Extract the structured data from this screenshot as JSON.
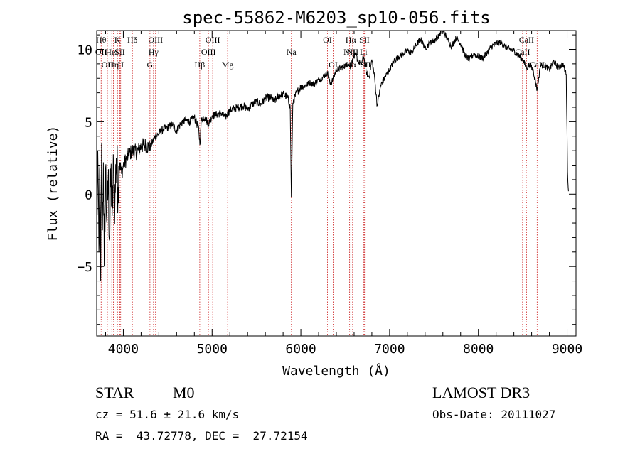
{
  "chart_data": {
    "type": "line",
    "title": "spec-55862-M6203_sp10-056.fits",
    "xlabel": "Wavelength (Å)",
    "ylabel": "Flux (relative)",
    "xlim": [
      3700,
      9100
    ],
    "ylim": [
      -9.8,
      11.3
    ],
    "x_ticks": [
      4000,
      5000,
      6000,
      7000,
      8000,
      9000
    ],
    "x_tick_labels": [
      "4000",
      "5000",
      "6000",
      "7000",
      "8000",
      "9000"
    ],
    "y_ticks": [
      -5,
      0,
      5,
      10
    ],
    "y_tick_labels": [
      "−5",
      "0",
      "5",
      "10"
    ],
    "series": [
      {
        "name": "flux",
        "x": [
          3700,
          3715,
          3725,
          3735,
          3745,
          3755,
          3765,
          3775,
          3785,
          3800,
          3815,
          3830,
          3845,
          3860,
          3875,
          3890,
          3905,
          3920,
          3940,
          3960,
          3980,
          4000,
          4030,
          4060,
          4100,
          4150,
          4200,
          4250,
          4300,
          4350,
          4400,
          4450,
          4500,
          4550,
          4600,
          4650,
          4700,
          4750,
          4800,
          4850,
          4862,
          4880,
          4920,
          4960,
          5000,
          5050,
          5100,
          5150,
          5200,
          5250,
          5300,
          5350,
          5400,
          5450,
          5500,
          5550,
          5600,
          5650,
          5700,
          5750,
          5800,
          5850,
          5880,
          5893,
          5910,
          5950,
          6000,
          6050,
          6100,
          6150,
          6200,
          6250,
          6300,
          6330,
          6360,
          6400,
          6450,
          6500,
          6530,
          6563,
          6590,
          6620,
          6650,
          6680,
          6710,
          6740,
          6770,
          6800,
          6830,
          6860,
          6900,
          6950,
          7000,
          7050,
          7100,
          7150,
          7200,
          7250,
          7300,
          7350,
          7400,
          7450,
          7500,
          7550,
          7600,
          7650,
          7700,
          7750,
          7800,
          7850,
          7900,
          7950,
          8000,
          8050,
          8100,
          8150,
          8200,
          8250,
          8300,
          8350,
          8400,
          8450,
          8500,
          8542,
          8580,
          8620,
          8662,
          8700,
          8750,
          8800,
          8850,
          8900,
          8950,
          8990,
          9005,
          9015
        ],
        "y": [
          -2,
          1.5,
          -4,
          2,
          -6,
          3.5,
          -2.5,
          2.2,
          -5,
          1.8,
          -2,
          1.2,
          -3.2,
          1.6,
          -1.5,
          1.9,
          -0.8,
          2.5,
          0.5,
          2.2,
          1.4,
          2,
          2.4,
          2.7,
          3,
          2.9,
          3.3,
          3.4,
          3.2,
          3.9,
          4.2,
          4.5,
          4.6,
          4.8,
          4.4,
          4.9,
          5.1,
          5,
          5.3,
          4.5,
          3.4,
          5.2,
          5.3,
          4.8,
          5.4,
          5.5,
          5.6,
          5.3,
          5.8,
          5.9,
          6,
          6.1,
          5.9,
          6.2,
          6.4,
          6.2,
          6.6,
          6.7,
          6.4,
          6.8,
          6.9,
          6.7,
          6,
          -0.2,
          6.3,
          7,
          7.4,
          7.5,
          7.7,
          7.6,
          7.9,
          8.1,
          8.4,
          7.6,
          7.9,
          8.6,
          8.7,
          8.9,
          9,
          8.8,
          9.4,
          9.6,
          9.1,
          9,
          9.5,
          8.3,
          8.1,
          9.3,
          8.1,
          6.1,
          7.5,
          8.1,
          8.6,
          9.2,
          9.5,
          9.7,
          9.9,
          9.8,
          10.3,
          10.7,
          10.1,
          10.4,
          10.6,
          10.9,
          11.4,
          10.7,
          10.2,
          10.8,
          10.4,
          9.6,
          9.3,
          9.7,
          9.5,
          9.4,
          9.8,
          10.2,
          10.4,
          10.5,
          10.2,
          10,
          9.9,
          9.6,
          9.3,
          8.7,
          9,
          8.5,
          7.2,
          8.9,
          8.9,
          8.6,
          9.2,
          8.7,
          9,
          8.3,
          1.5,
          0.2
        ]
      }
    ],
    "line_markers": [
      {
        "wavelength": 3750,
        "labels": [
          "Hθ",
          "OII"
        ],
        "rows": [
          0,
          1
        ]
      },
      {
        "wavelength": 3820,
        "labels": [
          "OII"
        ],
        "rows": [
          2
        ]
      },
      {
        "wavelength": 3870,
        "labels": [
          "HeI"
        ],
        "rows": [
          1
        ]
      },
      {
        "wavelength": 3889,
        "labels": [
          "Hη"
        ],
        "rows": [
          2
        ]
      },
      {
        "wavelength": 3934,
        "labels": [
          "K"
        ],
        "rows": [
          0
        ]
      },
      {
        "wavelength": 3960,
        "labels": [
          "SII"
        ],
        "rows": [
          1
        ]
      },
      {
        "wavelength": 3970,
        "labels": [
          "H"
        ],
        "rows": [
          2
        ]
      },
      {
        "wavelength": 4102,
        "labels": [
          "Hδ"
        ],
        "rows": [
          0
        ]
      },
      {
        "wavelength": 4300,
        "labels": [
          "G"
        ],
        "rows": [
          2
        ]
      },
      {
        "wavelength": 4340,
        "labels": [
          "Hγ"
        ],
        "rows": [
          1
        ]
      },
      {
        "wavelength": 4363,
        "labels": [
          "OIII"
        ],
        "rows": [
          0
        ]
      },
      {
        "wavelength": 4861,
        "labels": [
          "Hβ"
        ],
        "rows": [
          2
        ]
      },
      {
        "wavelength": 4959,
        "labels": [
          "OIII"
        ],
        "rows": [
          1
        ]
      },
      {
        "wavelength": 5007,
        "labels": [
          "OIII"
        ],
        "rows": [
          0
        ]
      },
      {
        "wavelength": 5175,
        "labels": [
          "Mg"
        ],
        "rows": [
          2
        ]
      },
      {
        "wavelength": 5893,
        "labels": [
          "Na"
        ],
        "rows": [
          1
        ]
      },
      {
        "wavelength": 6300,
        "labels": [
          "OI"
        ],
        "rows": [
          0
        ]
      },
      {
        "wavelength": 6364,
        "labels": [
          "OI"
        ],
        "rows": [
          2
        ]
      },
      {
        "wavelength": 6548,
        "labels": [
          "NII"
        ],
        "rows": [
          1
        ]
      },
      {
        "wavelength": 6563,
        "labels": [
          "Hα",
          "Hα"
        ],
        "rows": [
          0,
          2
        ]
      },
      {
        "wavelength": 6583,
        "labels": [
          "NII"
        ],
        "rows": [
          1
        ]
      },
      {
        "wavelength": 6707,
        "labels": [
          "Li"
        ],
        "rows": [
          1
        ]
      },
      {
        "wavelength": 6716,
        "labels": [
          "SII"
        ],
        "rows": [
          0
        ]
      },
      {
        "wavelength": 6731,
        "labels": [
          "SII"
        ],
        "rows": [
          2
        ]
      },
      {
        "wavelength": 8498,
        "labels": [
          "CaII"
        ],
        "rows": [
          1
        ]
      },
      {
        "wavelength": 8542,
        "labels": [
          "CaII"
        ],
        "rows": [
          0
        ]
      },
      {
        "wavelength": 8662,
        "labels": [
          "CaII"
        ],
        "rows": [
          2
        ]
      }
    ]
  },
  "info": {
    "object_class": "STAR",
    "subclass": "M0",
    "survey": "LAMOST DR3",
    "cz_line": "cz = 51.6 ± 21.6 km/s",
    "obs_date_line": "Obs-Date: 20111027",
    "coords_line": "RA =  43.72778, DEC =  27.72154"
  },
  "colors": {
    "spectrum": "#000000",
    "marker_line": "#cc2020",
    "axis": "#000000"
  }
}
